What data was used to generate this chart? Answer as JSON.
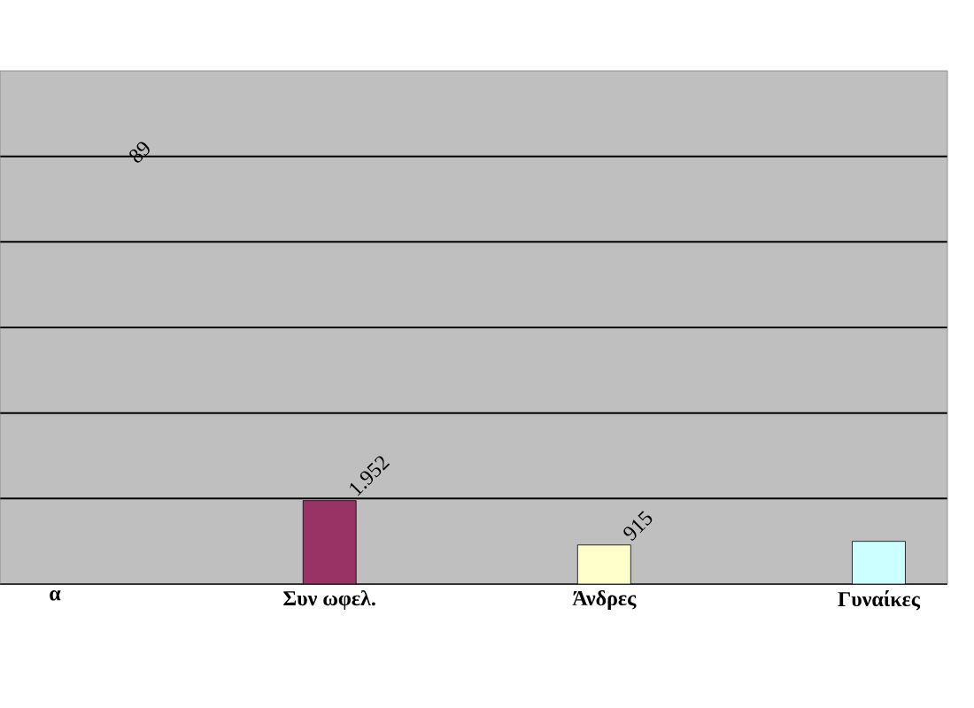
{
  "chart_data": {
    "type": "bar",
    "grid": "y",
    "categories": [
      "α",
      "Συν ωφελ.",
      "Άνδρες",
      "Γυναίκες"
    ],
    "values": [
      null,
      1952,
      915,
      1000
    ],
    "colors": [
      "#993366",
      "#993366",
      "#ffffcc",
      "#ccffff"
    ],
    "value_labels": [
      "89",
      "1.952",
      "915",
      null
    ],
    "ylim": [
      0,
      12000
    ],
    "yticks": [
      {
        "value": 0,
        "label": null
      },
      {
        "value": 2000,
        "label": null
      },
      {
        "value": 4000,
        "label": null
      },
      {
        "value": 6000,
        "label": null
      },
      {
        "value": 8000,
        "label": null
      },
      {
        "value": 10000,
        "label": null
      }
    ]
  }
}
